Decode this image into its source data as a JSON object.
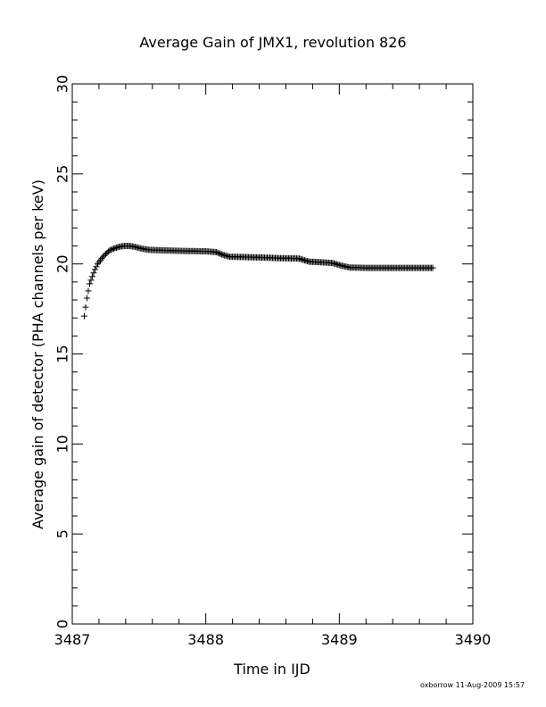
{
  "chart_data": {
    "type": "scatter",
    "title": "Average Gain of JMX1, revolution 826",
    "xlabel": "Time in IJD",
    "ylabel": "Average gain of detector (PHA channels per keV)",
    "xlim": [
      3487,
      3490
    ],
    "ylim": [
      0,
      30
    ],
    "x_ticks": [
      "3487",
      "3488",
      "3489",
      "3490"
    ],
    "y_ticks": [
      "0",
      "5",
      "10",
      "15",
      "20",
      "25",
      "30"
    ],
    "grid": false,
    "marker": "plus",
    "series": [
      {
        "color": "#000000",
        "points": [
          [
            3487.09,
            17.1
          ],
          [
            3487.1,
            17.6
          ],
          [
            3487.11,
            18.1
          ],
          [
            3487.12,
            18.5
          ],
          [
            3487.13,
            18.9
          ],
          [
            3487.15,
            19.3
          ],
          [
            3487.17,
            19.7
          ],
          [
            3487.19,
            20.0
          ],
          [
            3487.22,
            20.3
          ],
          [
            3487.25,
            20.55
          ],
          [
            3487.28,
            20.75
          ],
          [
            3487.31,
            20.85
          ],
          [
            3487.35,
            20.95
          ],
          [
            3487.39,
            21.0
          ],
          [
            3487.43,
            21.0
          ],
          [
            3487.47,
            20.95
          ],
          [
            3487.52,
            20.85
          ],
          [
            3487.58,
            20.78
          ],
          [
            3487.7,
            20.75
          ],
          [
            3487.85,
            20.72
          ],
          [
            3488.0,
            20.7
          ],
          [
            3488.08,
            20.65
          ],
          [
            3488.13,
            20.5
          ],
          [
            3488.18,
            20.4
          ],
          [
            3488.3,
            20.38
          ],
          [
            3488.45,
            20.35
          ],
          [
            3488.55,
            20.32
          ],
          [
            3488.7,
            20.3
          ],
          [
            3488.74,
            20.2
          ],
          [
            3488.78,
            20.12
          ],
          [
            3488.85,
            20.1
          ],
          [
            3488.95,
            20.05
          ],
          [
            3489.02,
            19.9
          ],
          [
            3489.08,
            19.8
          ],
          [
            3489.2,
            19.78
          ],
          [
            3489.35,
            19.78
          ],
          [
            3489.5,
            19.78
          ],
          [
            3489.7,
            19.78
          ]
        ]
      }
    ]
  },
  "footer": {
    "credit": "oxborrow 11-Aug-2009 15:57"
  }
}
